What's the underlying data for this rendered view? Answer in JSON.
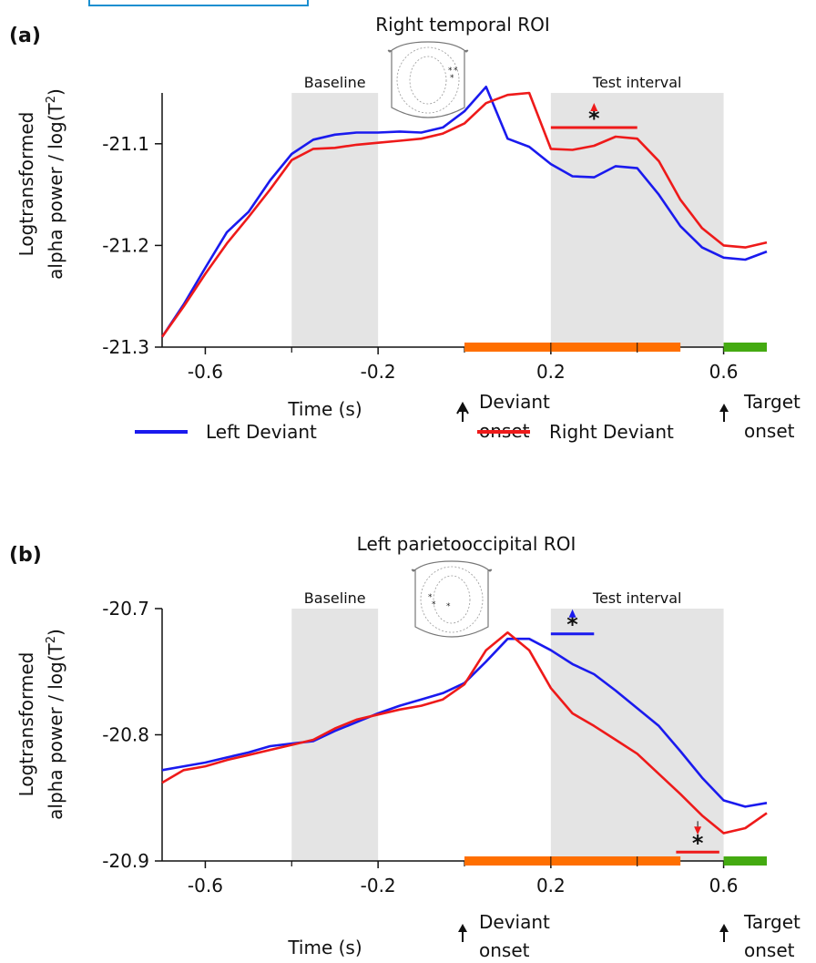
{
  "legend": {
    "left": "Left Deviant",
    "right": "Right Deviant",
    "left_color": "#1a1aee",
    "right_color": "#ee1a1a"
  },
  "colors": {
    "shade": "#e4e4e4",
    "orange_bar": "#ff6f00",
    "green_bar": "#44aa11"
  },
  "chart_data": [
    {
      "type": "line",
      "panel": "(a)",
      "title": "Right temporal ROI",
      "ylabel_line1": "Logtransformed",
      "ylabel_line2": "alpha power / log(T",
      "ylabel_sup": "2",
      "ylabel_end": ")",
      "xlabel": "Time (s)",
      "xlim": [
        -0.7,
        0.7
      ],
      "ylim": [
        -21.3,
        -21.05
      ],
      "xticks": [
        -0.6,
        -0.2,
        0.2,
        0.6
      ],
      "xtick_labels": [
        "-0.6",
        "-0.2",
        "0.2",
        "0.6"
      ],
      "yticks": [
        -21.3,
        -21.2,
        -21.1
      ],
      "ytick_labels": [
        "-21.3",
        "-21.2",
        "-21.1"
      ],
      "baseline": {
        "label": "Baseline",
        "range": [
          -0.4,
          -0.2
        ]
      },
      "test_interval": {
        "label": "Test interval",
        "range": [
          0.2,
          0.6
        ]
      },
      "deviant_onset": {
        "line1": "Deviant",
        "line2": "onset",
        "x": 0.0
      },
      "target_onset": {
        "line1": "Target",
        "line2": "onset",
        "x": 0.6
      },
      "orange_bar_range": [
        0.0,
        0.5
      ],
      "green_bar_range": [
        0.6,
        0.7
      ],
      "significance": [
        {
          "label": "*",
          "series": "Right Deviant",
          "range": [
            0.2,
            0.4
          ],
          "y": -21.084,
          "arrow": "up"
        }
      ],
      "series": [
        {
          "name": "Left Deviant",
          "x": [
            -0.7,
            -0.65,
            -0.6,
            -0.55,
            -0.5,
            -0.45,
            -0.4,
            -0.35,
            -0.3,
            -0.25,
            -0.2,
            -0.15,
            -0.1,
            -0.05,
            0.0,
            0.05,
            0.1,
            0.15,
            0.2,
            0.25,
            0.3,
            0.35,
            0.4,
            0.45,
            0.5,
            0.55,
            0.6,
            0.65,
            0.7
          ],
          "values": [
            -21.29,
            -21.258,
            -21.222,
            -21.187,
            -21.167,
            -21.136,
            -21.11,
            -21.096,
            -21.091,
            -21.089,
            -21.089,
            -21.088,
            -21.089,
            -21.084,
            -21.068,
            -21.044,
            -21.095,
            -21.103,
            -21.12,
            -21.132,
            -21.133,
            -21.122,
            -21.124,
            -21.15,
            -21.181,
            -21.202,
            -21.212,
            -21.214,
            -21.206
          ]
        },
        {
          "name": "Right Deviant",
          "x": [
            -0.7,
            -0.65,
            -0.6,
            -0.55,
            -0.5,
            -0.45,
            -0.4,
            -0.35,
            -0.3,
            -0.25,
            -0.2,
            -0.15,
            -0.1,
            -0.05,
            0.0,
            0.05,
            0.1,
            0.15,
            0.2,
            0.25,
            0.3,
            0.35,
            0.4,
            0.45,
            0.5,
            0.55,
            0.6,
            0.65,
            0.7
          ],
          "values": [
            -21.29,
            -21.26,
            -21.228,
            -21.198,
            -21.172,
            -21.145,
            -21.116,
            -21.105,
            -21.104,
            -21.101,
            -21.099,
            -21.097,
            -21.095,
            -21.09,
            -21.08,
            -21.06,
            -21.052,
            -21.05,
            -21.105,
            -21.106,
            -21.102,
            -21.093,
            -21.095,
            -21.117,
            -21.155,
            -21.183,
            -21.2,
            -21.202,
            -21.197
          ]
        }
      ]
    },
    {
      "type": "line",
      "panel": "(b)",
      "title": "Left parietooccipital ROI",
      "ylabel_line1": "Logtransformed",
      "ylabel_line2": "alpha power / log(T",
      "ylabel_sup": "2",
      "ylabel_end": ")",
      "xlabel": "Time (s)",
      "xlim": [
        -0.7,
        0.7
      ],
      "ylim": [
        -20.9,
        -20.7
      ],
      "xticks": [
        -0.6,
        -0.2,
        0.2,
        0.6
      ],
      "xtick_labels": [
        "-0.6",
        "-0.2",
        "0.2",
        "0.6"
      ],
      "yticks": [
        -20.9,
        -20.8,
        -20.7
      ],
      "ytick_labels": [
        "-20.9",
        "-20.8",
        "-20.7"
      ],
      "baseline": {
        "label": "Baseline",
        "range": [
          -0.4,
          -0.2
        ]
      },
      "test_interval": {
        "label": "Test interval",
        "range": [
          0.2,
          0.6
        ]
      },
      "deviant_onset": {
        "line1": "Deviant",
        "line2": "onset",
        "x": 0.0
      },
      "target_onset": {
        "line1": "Target",
        "line2": "onset",
        "x": 0.6
      },
      "orange_bar_range": [
        0.0,
        0.5
      ],
      "green_bar_range": [
        0.6,
        0.7
      ],
      "significance": [
        {
          "label": "*",
          "series": "Left Deviant",
          "range": [
            0.2,
            0.3
          ],
          "y": -20.72,
          "arrow": "up"
        },
        {
          "label": "*",
          "series": "Right Deviant",
          "range": [
            0.49,
            0.59
          ],
          "y": -20.893,
          "arrow": "down"
        }
      ],
      "series": [
        {
          "name": "Left Deviant",
          "x": [
            -0.7,
            -0.65,
            -0.6,
            -0.55,
            -0.5,
            -0.45,
            -0.4,
            -0.35,
            -0.3,
            -0.25,
            -0.2,
            -0.15,
            -0.1,
            -0.05,
            0.0,
            0.05,
            0.1,
            0.15,
            0.2,
            0.25,
            0.3,
            0.35,
            0.4,
            0.45,
            0.5,
            0.55,
            0.6,
            0.65,
            0.7
          ],
          "values": [
            -20.828,
            -20.825,
            -20.822,
            -20.818,
            -20.814,
            -20.809,
            -20.807,
            -20.805,
            -20.797,
            -20.79,
            -20.783,
            -20.777,
            -20.772,
            -20.767,
            -20.759,
            -20.742,
            -20.724,
            -20.724,
            -20.733,
            -20.744,
            -20.752,
            -20.765,
            -20.779,
            -20.793,
            -20.813,
            -20.834,
            -20.852,
            -20.857,
            -20.854
          ]
        },
        {
          "name": "Right Deviant",
          "x": [
            -0.7,
            -0.65,
            -0.6,
            -0.55,
            -0.5,
            -0.45,
            -0.4,
            -0.35,
            -0.3,
            -0.25,
            -0.2,
            -0.15,
            -0.1,
            -0.05,
            0.0,
            0.05,
            0.1,
            0.15,
            0.2,
            0.25,
            0.3,
            0.35,
            0.4,
            0.45,
            0.5,
            0.55,
            0.6,
            0.65,
            0.7
          ],
          "values": [
            -20.838,
            -20.828,
            -20.825,
            -20.82,
            -20.816,
            -20.812,
            -20.808,
            -20.804,
            -20.795,
            -20.788,
            -20.784,
            -20.78,
            -20.777,
            -20.772,
            -20.76,
            -20.733,
            -20.719,
            -20.733,
            -20.763,
            -20.783,
            -20.793,
            -20.804,
            -20.815,
            -20.831,
            -20.847,
            -20.864,
            -20.878,
            -20.874,
            -20.862
          ]
        }
      ]
    }
  ]
}
